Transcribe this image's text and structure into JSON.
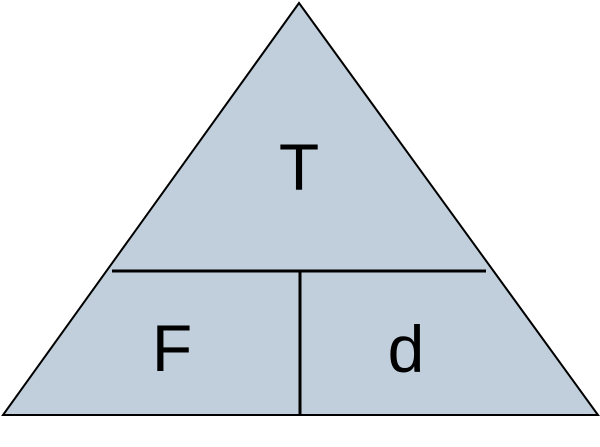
{
  "diagram": {
    "top_label": "T",
    "bottom_left_label": "F",
    "bottom_right_label": "d",
    "fill_color": "#c0cfdb",
    "line_color": "#000000",
    "background_color": "#ffffff"
  }
}
